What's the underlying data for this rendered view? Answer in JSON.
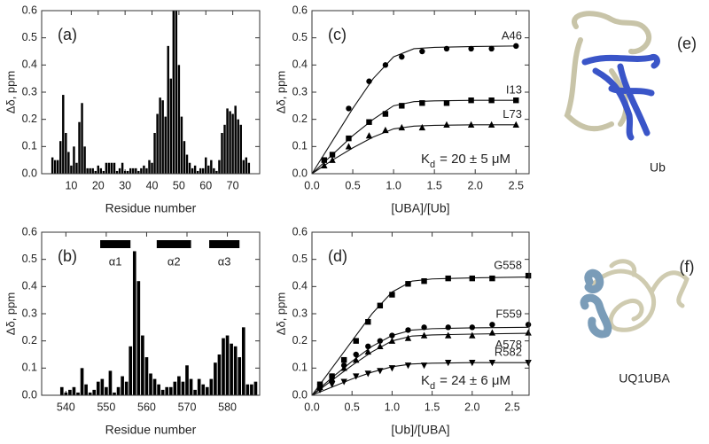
{
  "chart_data": [
    {
      "type": "bar",
      "panel_label": "(a)",
      "xlabel": "Residue number",
      "ylabel": "Δδ, ppm",
      "color": "#000000",
      "xlim": [
        -1,
        80
      ],
      "ylim": [
        0,
        0.6
      ],
      "xticks": [
        10,
        20,
        30,
        40,
        50,
        60,
        70
      ],
      "yticks": [
        {
          "value": 0,
          "label": "0.0"
        },
        0.1,
        0.2,
        0.3,
        0.4,
        0.5,
        0.6
      ],
      "x": [
        3,
        4,
        5,
        6,
        7,
        8,
        9,
        10,
        11,
        12,
        13,
        14,
        15,
        16,
        17,
        18,
        19,
        20,
        21,
        22,
        23,
        24,
        25,
        26,
        27,
        28,
        29,
        30,
        31,
        32,
        33,
        34,
        35,
        36,
        37,
        38,
        39,
        40,
        41,
        42,
        43,
        44,
        45,
        46,
        47,
        48,
        49,
        50,
        51,
        52,
        53,
        54,
        55,
        56,
        57,
        58,
        59,
        60,
        61,
        62,
        63,
        64,
        65,
        66,
        67,
        68,
        69,
        70,
        71,
        72,
        73,
        74,
        75,
        76
      ],
      "values": [
        0.06,
        0.05,
        0.05,
        0.12,
        0.29,
        0.15,
        0.08,
        0.03,
        0.1,
        0.04,
        0.19,
        0.26,
        0.1,
        0.02,
        0.02,
        0.02,
        0.01,
        0.03,
        0.02,
        0.01,
        0.04,
        0.04,
        0.04,
        0.04,
        0.01,
        0.02,
        0.04,
        0.01,
        0.01,
        0.02,
        0.02,
        0.02,
        0.01,
        0.02,
        0.03,
        0.02,
        0.05,
        0.04,
        0.15,
        0.22,
        0.28,
        0.27,
        0.21,
        0.47,
        0.35,
        0.6,
        0.6,
        0.4,
        0.21,
        0.12,
        0.07,
        0.04,
        0.02,
        0.03,
        0.01,
        0.02,
        0.02,
        0.06,
        0.03,
        0.05,
        0.02,
        0.01,
        0.05,
        0.15,
        0.18,
        0.24,
        0.23,
        0.22,
        0.25,
        0.2,
        0.18,
        0.05,
        0.06,
        0.04
      ]
    },
    {
      "type": "bar",
      "panel_label": "(b)",
      "xlabel": "Residue number",
      "ylabel": "Δδ, ppm",
      "color": "#000000",
      "xlim": [
        534,
        588
      ],
      "ylim": [
        0,
        0.6
      ],
      "xticks": [
        540,
        550,
        560,
        570,
        580
      ],
      "yticks": [
        {
          "value": 0,
          "label": "0.0"
        },
        0.1,
        0.2,
        0.3,
        0.4,
        0.5,
        0.6
      ],
      "helices": [
        {
          "label": "α1",
          "start": 548.5,
          "end": 556
        },
        {
          "label": "α2",
          "start": 562.5,
          "end": 571
        },
        {
          "label": "α3",
          "start": 575.5,
          "end": 583
        }
      ],
      "x": [
        539,
        540,
        541,
        542,
        543,
        544,
        545,
        546,
        547,
        548,
        549,
        550,
        551,
        552,
        553,
        554,
        555,
        556,
        557,
        558,
        559,
        560,
        561,
        562,
        563,
        564,
        565,
        566,
        567,
        568,
        569,
        570,
        571,
        572,
        573,
        574,
        575,
        576,
        577,
        578,
        579,
        580,
        581,
        582,
        583,
        584,
        585,
        586,
        587
      ],
      "values": [
        0.03,
        0.01,
        0.02,
        0.03,
        0.01,
        0.1,
        0.04,
        0.01,
        0.02,
        0.05,
        0.06,
        0.03,
        0.09,
        0.01,
        0.03,
        0.07,
        0.05,
        0.18,
        0.53,
        0.42,
        0.22,
        0.14,
        0.08,
        0.06,
        0.04,
        0.02,
        0.03,
        0.03,
        0.05,
        0.07,
        0.05,
        0.11,
        0.06,
        0.02,
        0.06,
        0.04,
        0.03,
        0.06,
        0.12,
        0.15,
        0.21,
        0.22,
        0.19,
        0.18,
        0.14,
        0.25,
        0.04,
        0.04,
        0.05
      ]
    },
    {
      "type": "scatter",
      "panel_label": "(c)",
      "xlabel": "[UBA]/[Ub]",
      "ylabel": "Δδ, ppm",
      "xlim": [
        0,
        2.66
      ],
      "ylim": [
        0,
        0.6
      ],
      "xticks": [
        {
          "value": 0,
          "label": "0.0"
        },
        0.5,
        {
          "value": 1,
          "label": "1.0"
        },
        1.5,
        {
          "value": 2,
          "label": "2.0"
        },
        2.5
      ],
      "yticks": [
        {
          "value": 0,
          "label": "0.0"
        },
        0.1,
        0.2,
        0.3,
        0.4,
        0.5,
        0.6
      ],
      "annotation": {
        "symbol": "K",
        "subscript": "d",
        "text": "= 20 ± 5 μM"
      },
      "series": [
        {
          "name": "A46",
          "color": "#000000",
          "marker": "circle",
          "x": [
            0.45,
            0.7,
            0.9,
            1.1,
            1.35,
            1.65,
            1.95,
            2.2,
            2.5
          ],
          "values": [
            0.24,
            0.34,
            0.4,
            0.43,
            0.45,
            0.46,
            0.46,
            0.46,
            0.47
          ],
          "fit": {
            "x": [
              0,
              0.25,
              0.5,
              0.75,
              1.0,
              1.25,
              1.5,
              2.0,
              2.5
            ],
            "values": [
              0,
              0.12,
              0.24,
              0.35,
              0.43,
              0.46,
              0.465,
              0.468,
              0.47
            ]
          }
        },
        {
          "name": "I13",
          "color": "#000000",
          "marker": "square",
          "x": [
            0.15,
            0.25,
            0.45,
            0.7,
            0.9,
            1.1,
            1.35,
            1.65,
            1.95,
            2.2,
            2.5
          ],
          "values": [
            0.05,
            0.07,
            0.13,
            0.19,
            0.22,
            0.25,
            0.26,
            0.26,
            0.27,
            0.27,
            0.27
          ],
          "fit": {
            "x": [
              0,
              0.25,
              0.5,
              0.75,
              1.0,
              1.25,
              1.5,
              2.0,
              2.5
            ],
            "values": [
              0,
              0.07,
              0.14,
              0.2,
              0.25,
              0.265,
              0.268,
              0.27,
              0.27
            ]
          }
        },
        {
          "name": "L73",
          "color": "#000000",
          "marker": "triangle-up",
          "x": [
            0.15,
            0.25,
            0.45,
            0.7,
            0.9,
            1.1,
            1.35,
            1.65,
            1.95,
            2.2,
            2.5
          ],
          "values": [
            0.03,
            0.05,
            0.1,
            0.14,
            0.16,
            0.17,
            0.17,
            0.18,
            0.18,
            0.18,
            0.18
          ],
          "fit": {
            "x": [
              0,
              0.25,
              0.5,
              0.75,
              1.0,
              1.25,
              1.5,
              2.0,
              2.5
            ],
            "values": [
              0,
              0.05,
              0.095,
              0.135,
              0.165,
              0.175,
              0.178,
              0.18,
              0.18
            ]
          }
        }
      ]
    },
    {
      "type": "scatter",
      "panel_label": "(d)",
      "xlabel": "[Ub]/[UBA]",
      "ylabel": "Δδ, ppm",
      "xlim": [
        0,
        2.71
      ],
      "ylim": [
        0,
        0.6
      ],
      "xticks": [
        {
          "value": 0,
          "label": "0.0"
        },
        0.5,
        {
          "value": 1,
          "label": "1.0"
        },
        1.5,
        {
          "value": 2,
          "label": "2.0"
        },
        2.5
      ],
      "yticks": [
        {
          "value": 0,
          "label": "0.0"
        },
        0.1,
        0.2,
        0.3,
        0.4,
        0.5,
        0.6
      ],
      "annotation": {
        "symbol": "K",
        "subscript": "d",
        "text": "= 24 ± 6 μM"
      },
      "series": [
        {
          "name": "G558",
          "color": "#000000",
          "marker": "square",
          "x": [
            0.1,
            0.25,
            0.4,
            0.55,
            0.7,
            0.85,
            1.0,
            1.2,
            1.4,
            1.7,
            2.0,
            2.25,
            2.7
          ],
          "values": [
            0.04,
            0.07,
            0.13,
            0.2,
            0.27,
            0.33,
            0.37,
            0.41,
            0.42,
            0.43,
            0.43,
            0.43,
            0.44
          ],
          "fit": {
            "x": [
              0,
              0.25,
              0.5,
              0.75,
              1.0,
              1.25,
              1.5,
              2.0,
              2.7
            ],
            "values": [
              0,
              0.1,
              0.2,
              0.3,
              0.38,
              0.42,
              0.428,
              0.432,
              0.435
            ]
          }
        },
        {
          "name": "F559",
          "color": "#000000",
          "marker": "circle",
          "x": [
            0.1,
            0.25,
            0.4,
            0.55,
            0.7,
            0.85,
            1.0,
            1.2,
            1.4,
            1.7,
            2.0,
            2.25,
            2.7
          ],
          "values": [
            0.04,
            0.07,
            0.11,
            0.15,
            0.18,
            0.2,
            0.22,
            0.24,
            0.25,
            0.25,
            0.25,
            0.26,
            0.26
          ],
          "fit": {
            "x": [
              0,
              0.25,
              0.5,
              0.75,
              1.0,
              1.25,
              1.5,
              2.0,
              2.7
            ],
            "values": [
              0,
              0.065,
              0.125,
              0.18,
              0.22,
              0.24,
              0.245,
              0.248,
              0.25
            ]
          }
        },
        {
          "name": "A578",
          "color": "#000000",
          "marker": "triangle-up",
          "x": [
            0.1,
            0.25,
            0.4,
            0.55,
            0.7,
            0.85,
            1.0,
            1.2,
            1.4,
            1.7,
            2.0,
            2.25,
            2.7
          ],
          "values": [
            0.03,
            0.06,
            0.1,
            0.13,
            0.16,
            0.18,
            0.2,
            0.21,
            0.22,
            0.22,
            0.22,
            0.23,
            0.23
          ],
          "fit": {
            "x": [
              0,
              0.25,
              0.5,
              0.75,
              1.0,
              1.25,
              1.5,
              2.0,
              2.7
            ],
            "values": [
              0,
              0.055,
              0.11,
              0.16,
              0.2,
              0.218,
              0.222,
              0.225,
              0.228
            ]
          }
        },
        {
          "name": "R582",
          "color": "#000000",
          "marker": "triangle-down",
          "x": [
            0.1,
            0.25,
            0.4,
            0.55,
            0.7,
            0.85,
            1.0,
            1.2,
            1.4,
            1.7,
            2.0,
            2.25,
            2.7
          ],
          "values": [
            0.02,
            0.04,
            0.05,
            0.07,
            0.08,
            0.09,
            0.1,
            0.11,
            0.11,
            0.12,
            0.12,
            0.12,
            0.12
          ],
          "fit": {
            "x": [
              0,
              0.25,
              0.5,
              0.75,
              1.0,
              1.25,
              1.5,
              2.0,
              2.7
            ],
            "values": [
              0,
              0.03,
              0.06,
              0.085,
              0.105,
              0.115,
              0.118,
              0.12,
              0.12
            ]
          }
        }
      ]
    }
  ],
  "structures": [
    {
      "label": "(e)",
      "caption": "Ub"
    },
    {
      "label": "(f)",
      "caption": "UQ1UBA"
    }
  ]
}
